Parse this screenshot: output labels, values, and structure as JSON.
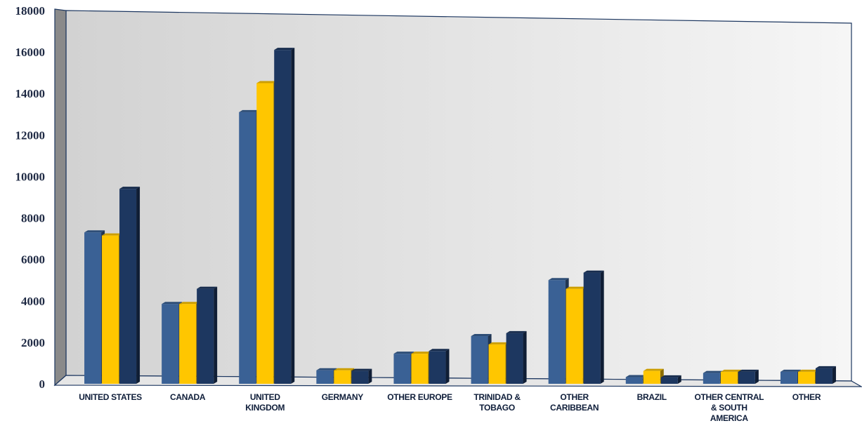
{
  "chart_data": {
    "type": "bar",
    "style": "3d-clustered-column",
    "categories": [
      [
        "UNITED STATES"
      ],
      [
        "CANADA"
      ],
      [
        "UNITED",
        "KINGDOM"
      ],
      [
        "GERMANY"
      ],
      [
        "OTHER EUROPE"
      ],
      [
        "TRINIDAD &",
        "TOBAGO"
      ],
      [
        "OTHER",
        "CARIBBEAN"
      ],
      [
        "BRAZIL"
      ],
      [
        "OTHER CENTRAL",
        "& SOUTH",
        "AMERICA"
      ],
      [
        "OTHER"
      ]
    ],
    "series": [
      {
        "color": "#3a6195",
        "values": [
          7300,
          3850,
          13100,
          650,
          1450,
          2300,
          5000,
          320,
          520,
          580
        ]
      },
      {
        "color": "#ffc600",
        "values": [
          7150,
          3850,
          14500,
          650,
          1450,
          1900,
          4580,
          620,
          580,
          580
        ]
      },
      {
        "color": "#1d3760",
        "values": [
          9400,
          4580,
          16100,
          620,
          1580,
          2440,
          5360,
          310,
          580,
          750
        ]
      }
    ],
    "y_ticks": [
      "0",
      "2000",
      "4000",
      "6000",
      "8000",
      "10000",
      "12000",
      "14000",
      "16000",
      "18000"
    ],
    "ylim": [
      0,
      18000
    ],
    "legend": "none",
    "grid": false
  }
}
